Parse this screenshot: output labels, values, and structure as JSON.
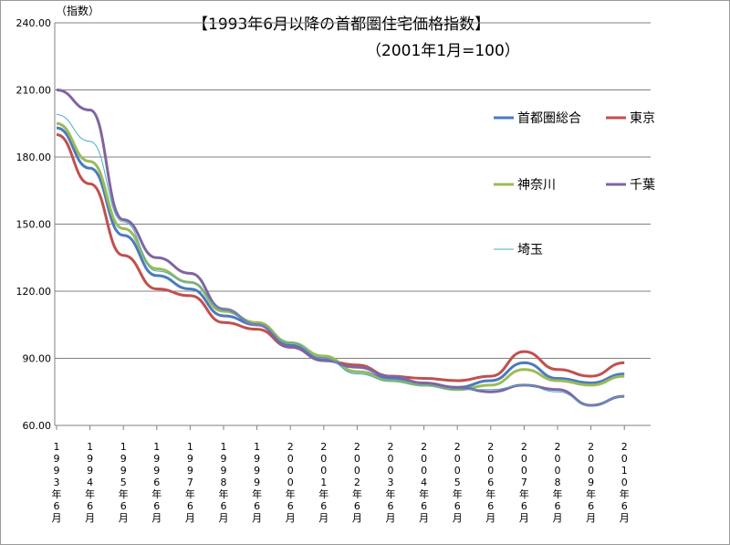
{
  "chart_data": {
    "type": "line",
    "title": "【1993年6月以降の首都圏住宅価格指数】",
    "subtitle": "（2001年1月=100）",
    "ylabel": "（指数）",
    "ylim": [
      60,
      240
    ],
    "yticks": [
      "60.00",
      "90.00",
      "120.00",
      "150.00",
      "180.00",
      "210.00",
      "240.00"
    ],
    "ytick_values": [
      60,
      90,
      120,
      150,
      180,
      210,
      240
    ],
    "grid": true,
    "legend_position": "right",
    "x": [
      "1993-06",
      "1994-06",
      "1995-06",
      "1996-06",
      "1997-06",
      "1998-06",
      "1999-06",
      "2000-06",
      "2001-06",
      "2002-06",
      "2003-06",
      "2004-06",
      "2005-06",
      "2006-06",
      "2007-06",
      "2008-06",
      "2009-06",
      "2010-06"
    ],
    "xtick_labels": [
      "1993年6月",
      "1994年6月",
      "1995年6月",
      "1996年6月",
      "1997年6月",
      "1998年6月",
      "1999年6月",
      "2000年6月",
      "2001年6月",
      "2002年6月",
      "2003年6月",
      "2004年6月",
      "2005年6月",
      "2006年6月",
      "2007年6月",
      "2008年6月",
      "2009年6月",
      "2010年6月"
    ],
    "series": [
      {
        "name": "首都圏総合",
        "color": "#4a7bbf",
        "width": 3,
        "values": [
          193,
          175,
          145,
          127,
          121,
          109,
          105,
          96,
          90,
          84,
          81,
          78,
          77,
          80,
          88,
          81,
          79,
          83
        ]
      },
      {
        "name": "東京",
        "color": "#c0504d",
        "width": 3,
        "values": [
          190,
          168,
          136,
          121,
          118,
          106,
          103,
          95,
          89,
          87,
          82,
          81,
          80,
          82,
          93,
          85,
          82,
          88
        ]
      },
      {
        "name": "神奈川",
        "color": "#9bbb59",
        "width": 3,
        "values": [
          195,
          178,
          148,
          130,
          124,
          111,
          106,
          97,
          91,
          84,
          80,
          78,
          76,
          78,
          85,
          80,
          78,
          82
        ]
      },
      {
        "name": "千葉",
        "color": "#8064a2",
        "width": 3,
        "values": [
          210,
          201,
          152,
          135,
          128,
          112,
          105,
          95,
          89,
          86,
          82,
          79,
          77,
          75,
          78,
          76,
          69,
          73
        ]
      },
      {
        "name": "埼玉",
        "color": "#4bacc6",
        "width": 1,
        "values": [
          199,
          187,
          151,
          129,
          124,
          112,
          105,
          97,
          90,
          83,
          80,
          78,
          76,
          76,
          78,
          75,
          69,
          73
        ]
      }
    ]
  }
}
